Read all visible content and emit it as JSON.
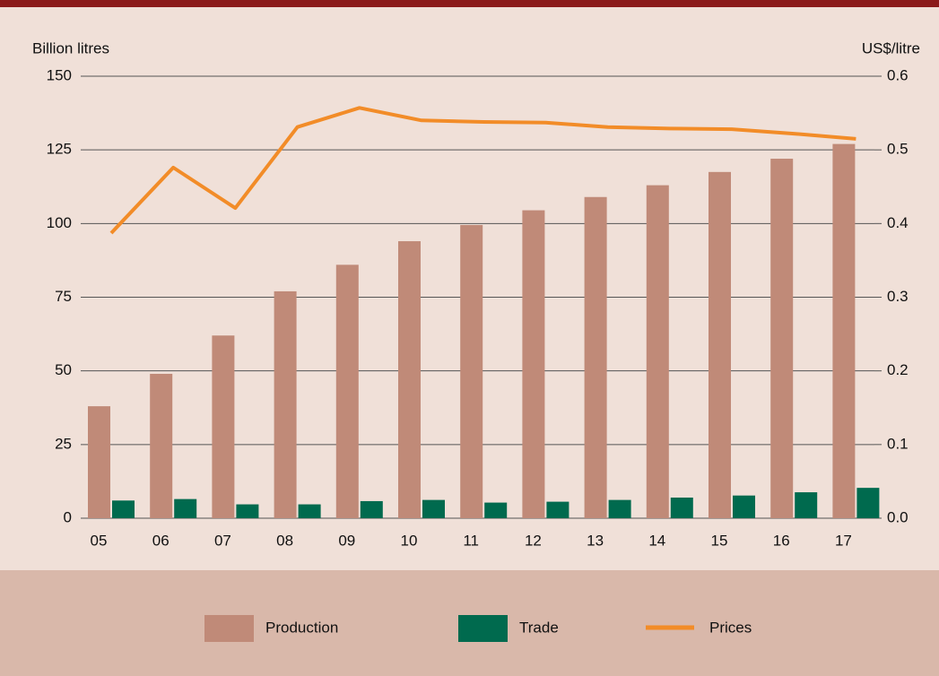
{
  "chart_data": {
    "type": "bar",
    "y_label": "Billion litres",
    "y2_label": "US$/litre",
    "categories": [
      "05",
      "06",
      "07",
      "08",
      "09",
      "10",
      "11",
      "12",
      "13",
      "14",
      "15",
      "16",
      "17"
    ],
    "series": [
      {
        "name": "Production",
        "type": "bar",
        "color": "#c08a78",
        "values": [
          38,
          49,
          62,
          77,
          86,
          94,
          99.5,
          104.5,
          109,
          113,
          117.5,
          122,
          127
        ]
      },
      {
        "name": "Trade",
        "type": "bar",
        "color": "#006a4e",
        "values": [
          6,
          6.5,
          4.7,
          4.7,
          5.8,
          6.2,
          5.3,
          5.6,
          6.2,
          7.0,
          7.7,
          8.8,
          10.3
        ]
      },
      {
        "name": "Prices",
        "type": "line",
        "axis": "y2",
        "color": "#f28c28",
        "values": [
          0.387,
          0.476,
          0.421,
          0.531,
          0.557,
          0.54,
          0.538,
          0.537,
          0.531,
          0.529,
          0.528,
          0.522,
          0.515
        ]
      }
    ],
    "ylim": [
      0,
      150
    ],
    "yticks": [
      0,
      25,
      50,
      75,
      100,
      125,
      150
    ],
    "y2lim": [
      0,
      0.6
    ],
    "y2ticks": [
      {
        "value": 0,
        "label": "0.0"
      },
      0.1,
      0.2,
      0.3,
      0.4,
      0.5,
      0.6
    ],
    "grid": true
  }
}
